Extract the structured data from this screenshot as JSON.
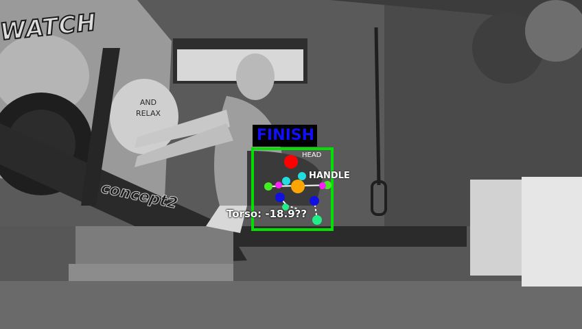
{
  "overlay": {
    "phase_label": "FINISH",
    "head_label": "HEAD",
    "handle_label": "HANDLE",
    "torso_label": "Torso: -18.9??"
  },
  "scene_text": {
    "wall_graffiti": "WATCH",
    "wall_sign": "AND RELAX",
    "machine_brand": "concept2"
  },
  "colors": {
    "box": "#00e000",
    "phase_text": "#1010ff",
    "head_dot": "#ff0000",
    "handle_dot": "#ffa500",
    "keypoint_cyan": "#22dde0",
    "keypoint_blue": "#1010e0",
    "keypoint_green": "#22ee88",
    "keypoint_magenta": "#ff22ff"
  }
}
